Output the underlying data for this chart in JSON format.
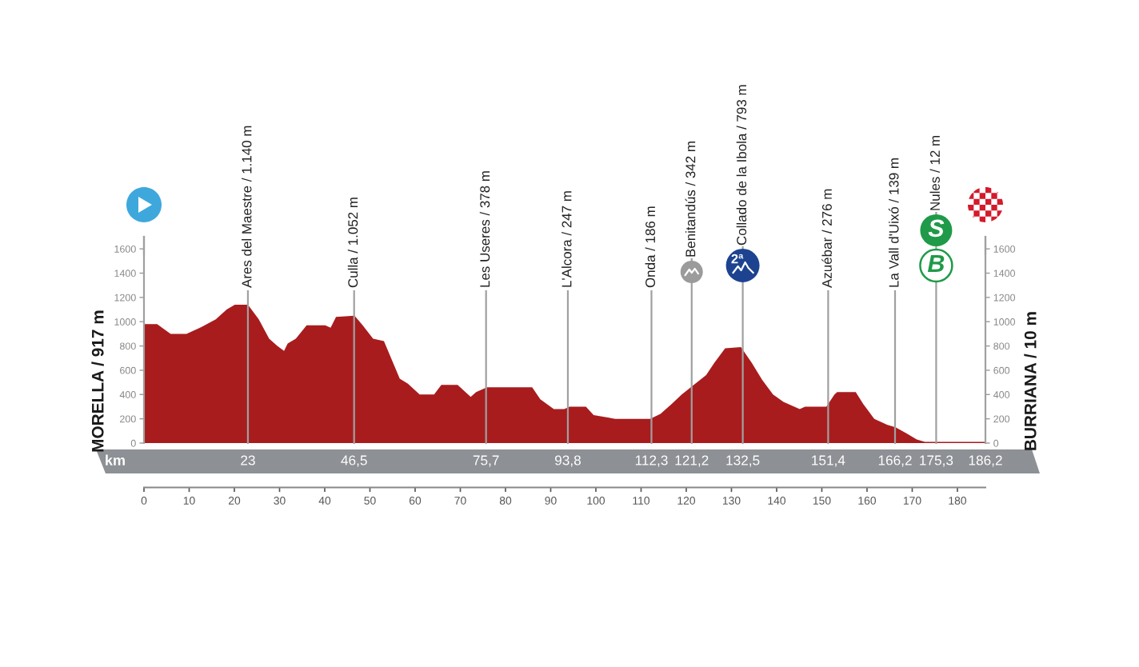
{
  "chart_data": {
    "type": "area",
    "ylabel": "MORELLA / 917 m",
    "y2label": "BURRIANA / 10 m",
    "x": [
      0,
      2.9,
      5.9,
      9.4,
      12.4,
      15.9,
      18.3,
      20.1,
      23,
      25.4,
      27.7,
      29.5,
      31,
      31.8,
      33.6,
      36,
      40.1,
      41.3,
      42.5,
      46.6,
      48.4,
      50.7,
      53.1,
      56.6,
      58.4,
      61,
      64.2,
      65.8,
      69.4,
      72.3,
      73.5,
      75.9,
      77.7,
      85.9,
      87.7,
      90.7,
      93,
      94.2,
      97.8,
      99.5,
      104.3,
      112,
      114.3,
      116.7,
      119,
      122,
      124.4,
      126.2,
      128.6,
      132.1,
      134.5,
      136.8,
      139.2,
      141.5,
      143.9,
      145.1,
      146.3,
      151,
      152.8,
      153.4,
      157.5,
      159.2,
      161.6,
      164.5,
      166.3,
      168.7,
      171,
      172.8,
      175.3,
      186.2
    ],
    "values": [
      980,
      980,
      900,
      900,
      950,
      1020,
      1100,
      1140,
      1140,
      1020,
      860,
      800,
      760,
      820,
      860,
      970,
      970,
      950,
      1040,
      1050,
      970,
      860,
      840,
      530,
      490,
      400,
      400,
      480,
      480,
      380,
      420,
      460,
      460,
      460,
      360,
      280,
      280,
      300,
      300,
      230,
      200,
      200,
      240,
      320,
      400,
      490,
      560,
      660,
      780,
      790,
      660,
      520,
      400,
      340,
      300,
      280,
      300,
      300,
      400,
      420,
      420,
      320,
      200,
      150,
      130,
      80,
      30,
      10,
      10,
      10
    ],
    "color": "#a81c1e",
    "xlim": [
      0,
      186.2
    ],
    "xticks": [
      0,
      10,
      20,
      30,
      40,
      50,
      60,
      70,
      80,
      90,
      100,
      110,
      120,
      130,
      140,
      150,
      160,
      170,
      180
    ],
    "ylim": [
      0,
      1700
    ],
    "yticks": [
      0,
      200,
      400,
      600,
      800,
      1000,
      1200,
      1400,
      1600
    ],
    "y2lim": [
      0,
      1700
    ],
    "y2ticks": [
      0,
      200,
      400,
      600,
      800,
      1000,
      1200,
      1400,
      1600
    ],
    "ref_lines": [
      {
        "axis": "x",
        "value": 23,
        "label": "Ares del Maestre / 1.140 m",
        "color": "#a0a0a0"
      },
      {
        "axis": "x",
        "value": 46.5,
        "label": "Culla / 1.052 m",
        "color": "#a0a0a0"
      },
      {
        "axis": "x",
        "value": 75.7,
        "label": "Les Useres / 378 m",
        "color": "#a0a0a0"
      },
      {
        "axis": "x",
        "value": 93.8,
        "label": "L'Alcora / 247 m",
        "color": "#a0a0a0"
      },
      {
        "axis": "x",
        "value": 112.3,
        "label": "Onda / 186 m",
        "color": "#a0a0a0"
      },
      {
        "axis": "x",
        "value": 121.2,
        "label": "Benitandús / 342 m",
        "color": "#a0a0a0"
      },
      {
        "axis": "x",
        "value": 132.5,
        "label": "Collado de la Ibola / 793 m",
        "color": "#a0a0a0"
      },
      {
        "axis": "x",
        "value": 151.4,
        "label": "Azuébar / 276 m",
        "color": "#a0a0a0"
      },
      {
        "axis": "x",
        "value": 166.2,
        "label": "La Vall d'Uixó / 139 m",
        "color": "#a0a0a0"
      },
      {
        "axis": "x",
        "value": 175.3,
        "label": "Nules / 12 m",
        "color": "#a0a0a0"
      }
    ],
    "annotations": [
      "km",
      "23",
      "46,5",
      "75,7",
      "93,8",
      "112,3",
      "121,2",
      "132,5",
      "151,4",
      "166,2",
      "175,3",
      "186,2",
      "2ª",
      "S",
      "B"
    ]
  }
}
